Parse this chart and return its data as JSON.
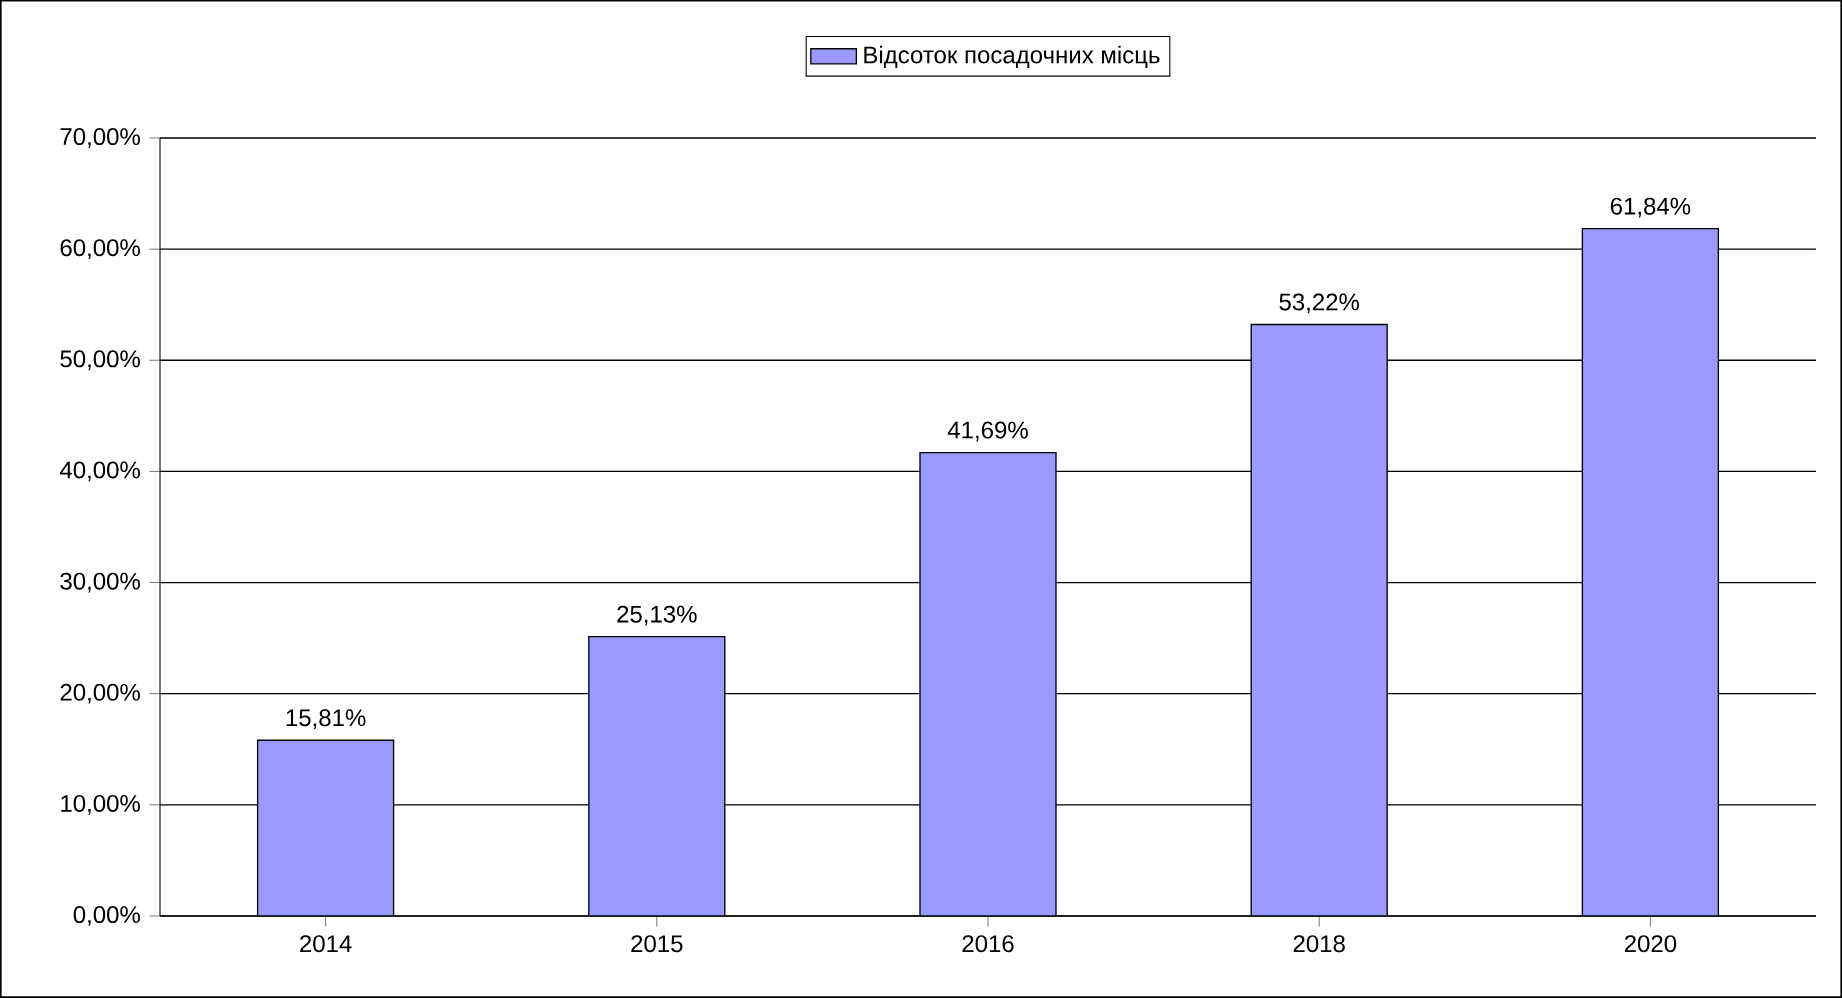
{
  "chart_data": {
    "type": "bar",
    "categories": [
      "2014",
      "2015",
      "2016",
      "2018",
      "2020"
    ],
    "series": [
      {
        "name": "Відсоток посадочних місць",
        "color": "#9999ff",
        "values": [
          15.81,
          25.13,
          41.69,
          53.22,
          61.84
        ],
        "value_labels": [
          "15,81%",
          "25,13%",
          "41,69%",
          "53,22%",
          "61,84%"
        ]
      }
    ],
    "ylim": [
      0,
      70
    ],
    "yticks": [
      {
        "value": 0,
        "label": "0,00%"
      },
      {
        "value": 10,
        "label": "10,00%"
      },
      {
        "value": 20,
        "label": "20,00%"
      },
      {
        "value": 30,
        "label": "30,00%"
      },
      {
        "value": 40,
        "label": "40,00%"
      },
      {
        "value": 50,
        "label": "50,00%"
      },
      {
        "value": 60,
        "label": "60,00%"
      },
      {
        "value": 70,
        "label": "70,00%"
      }
    ],
    "grid": "y",
    "legend": "top"
  }
}
